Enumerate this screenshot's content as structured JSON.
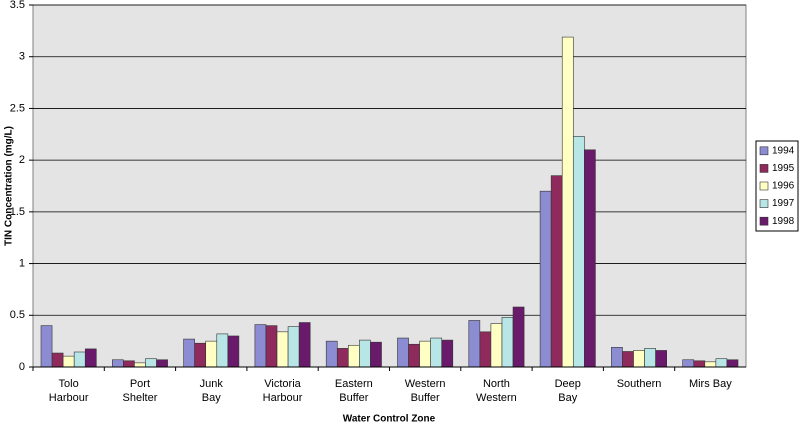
{
  "chart_data": {
    "type": "bar",
    "xlabel": "Water Control Zone",
    "ylabel": "TIN Concentration (mg/L)",
    "categories": [
      "Tolo\nHarbour",
      "Port\nShelter",
      "Junk\nBay",
      "Victoria\nHarbour",
      "Eastern\nBuffer",
      "Western\nBuffer",
      "North\nWestern",
      "Deep\nBay",
      "Southern",
      "Mirs Bay"
    ],
    "series": [
      {
        "name": "1994",
        "color": "#8c8cd2",
        "values": [
          0.4,
          0.07,
          0.27,
          0.41,
          0.25,
          0.28,
          0.45,
          1.7,
          0.19,
          0.07
        ]
      },
      {
        "name": "1995",
        "color": "#8f2a5c",
        "values": [
          0.135,
          0.06,
          0.23,
          0.4,
          0.18,
          0.22,
          0.34,
          1.85,
          0.15,
          0.06
        ]
      },
      {
        "name": "1996",
        "color": "#ffffc4",
        "values": [
          0.105,
          0.04,
          0.25,
          0.34,
          0.21,
          0.25,
          0.42,
          3.19,
          0.16,
          0.05
        ]
      },
      {
        "name": "1997",
        "color": "#b8e6e6",
        "values": [
          0.145,
          0.08,
          0.32,
          0.39,
          0.26,
          0.28,
          0.48,
          2.23,
          0.18,
          0.08
        ]
      },
      {
        "name": "1998",
        "color": "#6a1a6a",
        "values": [
          0.175,
          0.07,
          0.3,
          0.43,
          0.24,
          0.26,
          0.58,
          2.1,
          0.16,
          0.07
        ]
      }
    ],
    "ylim": [
      0,
      3.5
    ],
    "yticks": [
      0,
      0.5,
      1,
      1.5,
      2,
      2.5,
      3,
      3.5
    ],
    "grid": true,
    "legend": "right"
  }
}
